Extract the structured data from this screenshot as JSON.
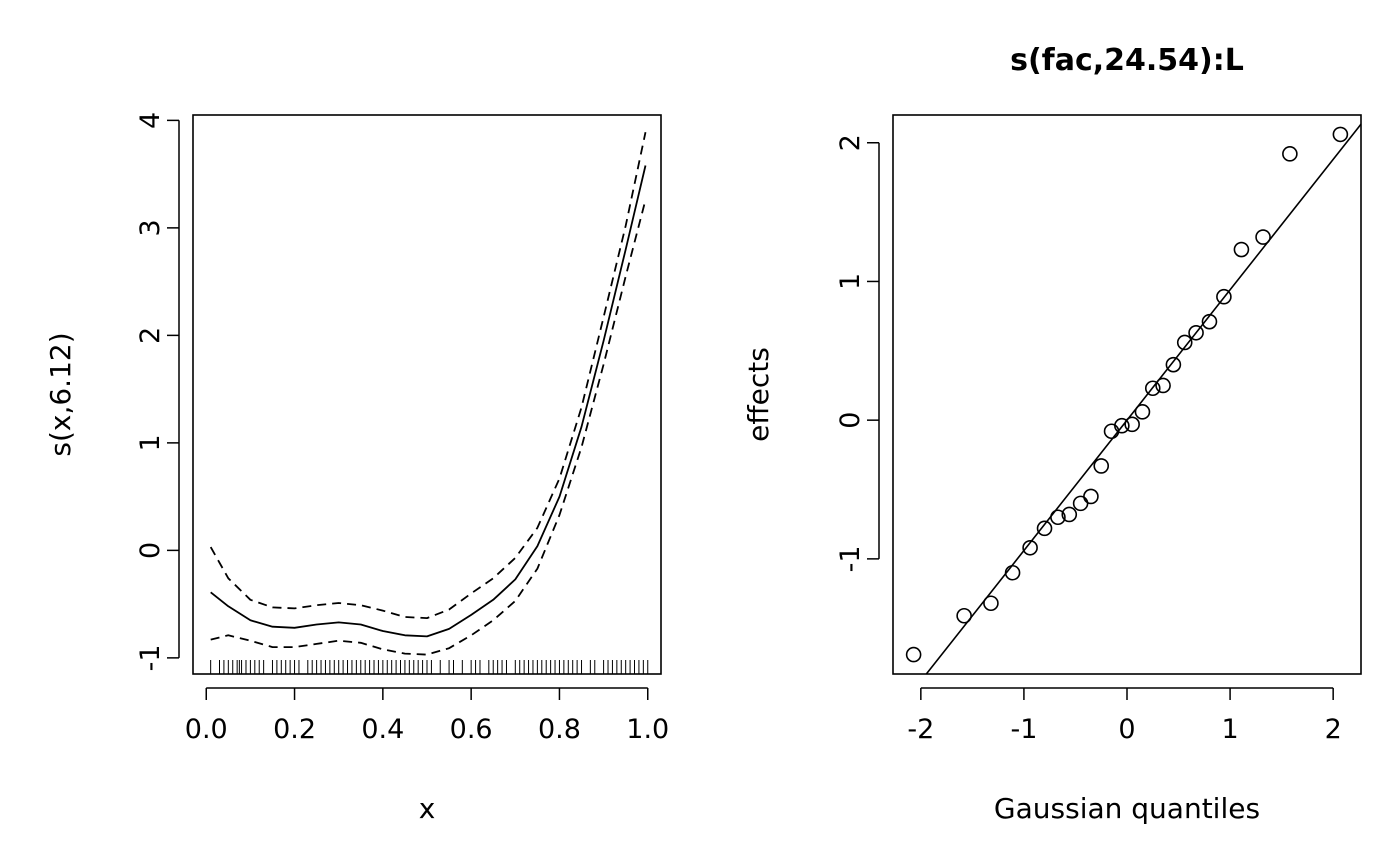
{
  "chart_data": [
    {
      "type": "line",
      "xlabel": "x",
      "ylabel": "s(x,6.12)",
      "xlim": [
        -0.03,
        1.03
      ],
      "ylim": [
        -1.15,
        4.05
      ],
      "xticks": [
        0,
        0.2,
        0.4,
        0.6,
        0.8,
        1.0
      ],
      "xtick_labels": [
        "0.0",
        "0.2",
        "0.4",
        "0.6",
        "0.8",
        "1.0"
      ],
      "yticks": [
        -1,
        0,
        1,
        2,
        3,
        4
      ],
      "ytick_labels": [
        "-1",
        "0",
        "1",
        "2",
        "3",
        "4"
      ],
      "x": [
        0.01,
        0.05,
        0.1,
        0.15,
        0.2,
        0.25,
        0.3,
        0.35,
        0.4,
        0.45,
        0.5,
        0.55,
        0.6,
        0.65,
        0.7,
        0.75,
        0.8,
        0.85,
        0.9,
        0.95,
        0.995
      ],
      "series": [
        {
          "style": "solid",
          "values": [
            -0.39,
            -0.52,
            -0.65,
            -0.71,
            -0.72,
            -0.69,
            -0.67,
            -0.69,
            -0.75,
            -0.79,
            -0.8,
            -0.73,
            -0.6,
            -0.46,
            -0.27,
            0.04,
            0.5,
            1.15,
            1.95,
            2.8,
            3.58
          ]
        },
        {
          "style": "dashed",
          "values": [
            0.03,
            -0.26,
            -0.46,
            -0.53,
            -0.54,
            -0.51,
            -0.49,
            -0.51,
            -0.56,
            -0.62,
            -0.63,
            -0.55,
            -0.4,
            -0.26,
            -0.07,
            0.21,
            0.67,
            1.33,
            2.17,
            3.02,
            3.89
          ]
        },
        {
          "style": "dashed",
          "values": [
            -0.83,
            -0.79,
            -0.84,
            -0.9,
            -0.9,
            -0.87,
            -0.84,
            -0.86,
            -0.92,
            -0.96,
            -0.97,
            -0.91,
            -0.79,
            -0.65,
            -0.47,
            -0.17,
            0.33,
            0.96,
            1.73,
            2.55,
            3.26
          ]
        }
      ],
      "rug_x": [
        0.01,
        0.03,
        0.04,
        0.05,
        0.06,
        0.07,
        0.075,
        0.08,
        0.09,
        0.1,
        0.11,
        0.12,
        0.13,
        0.15,
        0.16,
        0.17,
        0.18,
        0.19,
        0.2,
        0.21,
        0.23,
        0.24,
        0.25,
        0.26,
        0.27,
        0.28,
        0.29,
        0.3,
        0.31,
        0.32,
        0.33,
        0.34,
        0.35,
        0.36,
        0.37,
        0.38,
        0.39,
        0.4,
        0.41,
        0.42,
        0.43,
        0.44,
        0.45,
        0.46,
        0.47,
        0.48,
        0.49,
        0.5,
        0.51,
        0.53,
        0.55,
        0.56,
        0.58,
        0.6,
        0.61,
        0.62,
        0.64,
        0.65,
        0.66,
        0.67,
        0.68,
        0.7,
        0.71,
        0.72,
        0.73,
        0.74,
        0.75,
        0.76,
        0.77,
        0.78,
        0.79,
        0.8,
        0.81,
        0.82,
        0.83,
        0.84,
        0.85,
        0.87,
        0.88,
        0.9,
        0.91,
        0.92,
        0.93,
        0.94,
        0.95,
        0.96,
        0.97,
        0.98,
        0.99,
        1.0
      ]
    },
    {
      "type": "scatter",
      "title": "s(fac,24.54):L",
      "xlabel": "Gaussian quantiles",
      "ylabel": "effects",
      "xlim": [
        -2.27,
        2.27
      ],
      "ylim": [
        -1.83,
        2.2
      ],
      "xticks": [
        -2,
        -1,
        0,
        1,
        2
      ],
      "xtick_labels": [
        "-2",
        "-1",
        "0",
        "1",
        "2"
      ],
      "yticks": [
        -1,
        0,
        1,
        2
      ],
      "ytick_labels": [
        "-1",
        "0",
        "1",
        "2"
      ],
      "x": [
        -2.07,
        -1.58,
        -1.32,
        -1.11,
        -0.94,
        -0.8,
        -0.67,
        -0.56,
        -0.45,
        -0.35,
        -0.25,
        -0.15,
        -0.05,
        0.05,
        0.15,
        0.25,
        0.35,
        0.45,
        0.56,
        0.67,
        0.8,
        0.94,
        1.11,
        1.32,
        1.58,
        2.07
      ],
      "values": [
        -1.69,
        -1.41,
        -1.32,
        -1.1,
        -0.92,
        -0.78,
        -0.7,
        -0.68,
        -0.6,
        -0.55,
        -0.33,
        -0.08,
        -0.04,
        -0.03,
        0.06,
        0.23,
        0.25,
        0.4,
        0.56,
        0.63,
        0.71,
        0.89,
        1.23,
        1.32,
        1.92,
        2.06
      ],
      "reference_line": {
        "intercept": 0.0,
        "slope": 0.94
      }
    }
  ]
}
